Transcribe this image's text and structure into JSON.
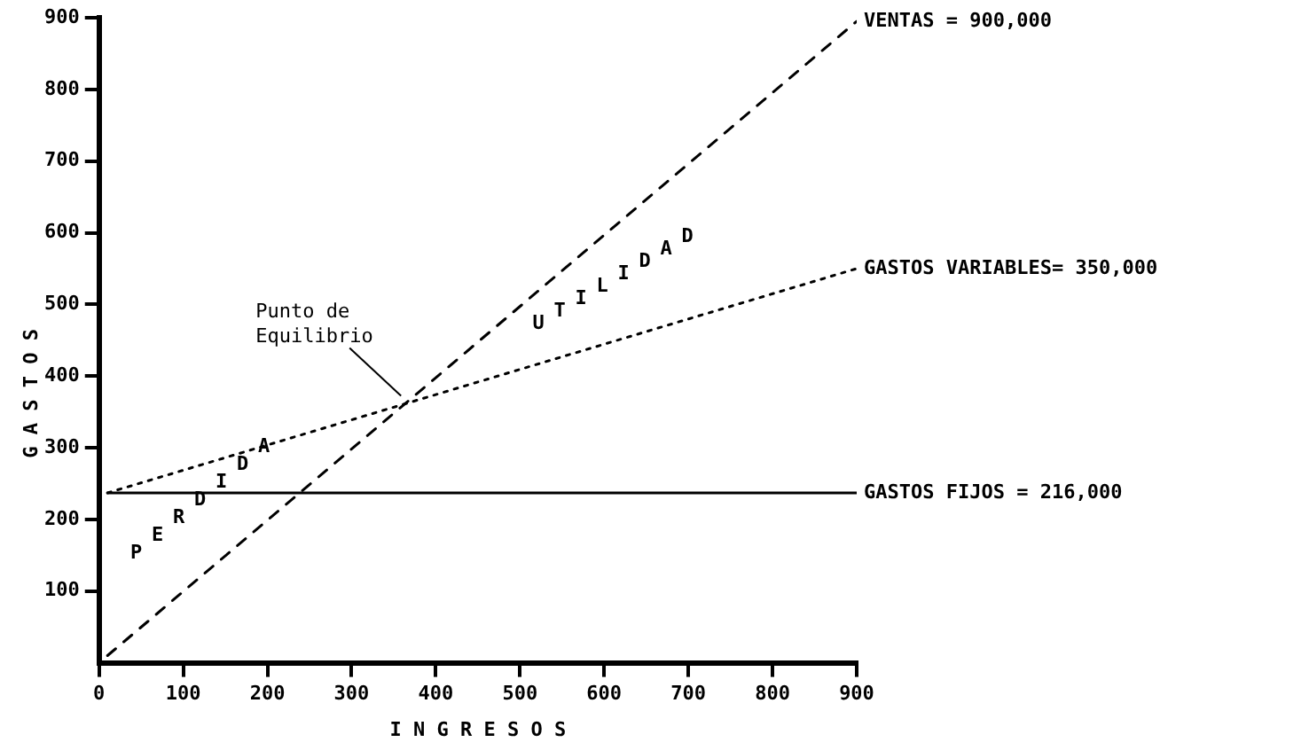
{
  "chart_data": {
    "type": "line",
    "xlabel": "I N G R E S O S",
    "ylabel": "G A S T O S",
    "xlim": [
      0,
      900
    ],
    "ylim": [
      0,
      900
    ],
    "xticks": [
      0,
      100,
      200,
      300,
      400,
      500,
      600,
      700,
      800,
      900
    ],
    "yticks": [
      100,
      200,
      300,
      400,
      500,
      600,
      700,
      800,
      900
    ],
    "grid": false,
    "legend": false,
    "marker": "none",
    "x": [
      10,
      900
    ],
    "series": [
      {
        "name": "VENTAS = 900,000",
        "color": "#000000",
        "line_style": "dashed",
        "values": [
          10,
          895
        ]
      },
      {
        "name": "GASTOS VARIABLES= 350,000",
        "color": "#000000",
        "line_style": "dotted",
        "values": [
          237,
          550
        ]
      },
      {
        "name": "GASTOS FIJOS = 216,000",
        "color": "#000000",
        "line_style": "solid",
        "values": [
          237,
          237
        ]
      }
    ],
    "annotations": [
      {
        "text": "Punto de Equilibrio",
        "x": 365,
        "y": 365
      },
      "U T I L I D A D",
      "P E R D I D A"
    ]
  }
}
